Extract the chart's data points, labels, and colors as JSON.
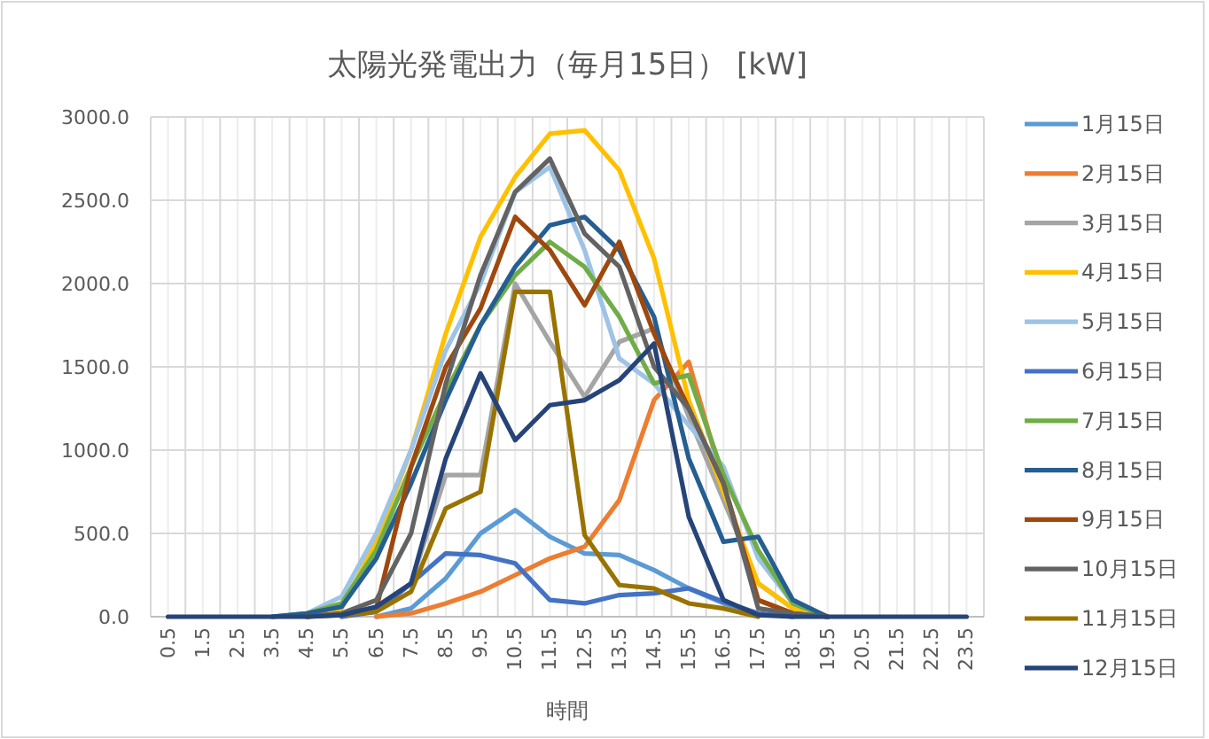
{
  "chart_data": {
    "type": "line",
    "title": "太陽光発電出力（毎月15日） [kW]",
    "xlabel": "時間",
    "categories": [
      "0.5",
      "1.5",
      "2.5",
      "3.5",
      "4.5",
      "5.5",
      "6.5",
      "7.5",
      "8.5",
      "9.5",
      "10.5",
      "11.5",
      "12.5",
      "13.5",
      "14.5",
      "15.5",
      "16.5",
      "17.5",
      "18.5",
      "19.5",
      "20.5",
      "21.5",
      "22.5",
      "23.5"
    ],
    "ylim": [
      0,
      3000
    ],
    "yticks": [
      {
        "value": 0,
        "label": "0.0"
      },
      {
        "value": 500,
        "label": "500.0"
      },
      {
        "value": 1000,
        "label": "1000.0"
      },
      {
        "value": 1500,
        "label": "1500.0"
      },
      {
        "value": 2000,
        "label": "2000.0"
      },
      {
        "value": 2500,
        "label": "2500.0"
      },
      {
        "value": 3000,
        "label": "3000.0"
      }
    ],
    "grid": true,
    "legend": "right",
    "series": [
      {
        "name": "1月15日",
        "color": "#5b9bd5",
        "values": [
          null,
          null,
          null,
          null,
          null,
          null,
          0,
          50,
          230,
          500,
          640,
          480,
          380,
          370,
          280,
          170,
          80,
          20,
          0,
          null,
          null,
          null,
          null,
          null
        ]
      },
      {
        "name": "2月15日",
        "color": "#ed7d31",
        "values": [
          null,
          null,
          null,
          null,
          null,
          null,
          0,
          20,
          80,
          150,
          250,
          350,
          420,
          700,
          1300,
          1530,
          800,
          100,
          20,
          0,
          null,
          null,
          null,
          null
        ]
      },
      {
        "name": "3月15日",
        "color": "#a5a5a5",
        "values": [
          null,
          null,
          null,
          null,
          null,
          0,
          50,
          200,
          850,
          850,
          2000,
          1650,
          1320,
          1650,
          1730,
          1200,
          700,
          200,
          50,
          0,
          null,
          null,
          null,
          null
        ]
      },
      {
        "name": "4月15日",
        "color": "#ffc000",
        "values": [
          null,
          null,
          null,
          null,
          0,
          50,
          450,
          1000,
          1700,
          2280,
          2640,
          2900,
          2920,
          2680,
          2150,
          1300,
          750,
          200,
          50,
          0,
          null,
          null,
          null,
          null
        ]
      },
      {
        "name": "5月15日",
        "color": "#9dc3e6",
        "values": [
          null,
          null,
          null,
          0,
          20,
          120,
          500,
          1000,
          1600,
          2000,
          2550,
          2700,
          2200,
          1550,
          1400,
          1150,
          900,
          350,
          80,
          0,
          null,
          null,
          null,
          null
        ]
      },
      {
        "name": "6月15日",
        "color": "#4472c4",
        "values": [
          null,
          null,
          null,
          null,
          null,
          0,
          30,
          200,
          380,
          370,
          320,
          100,
          80,
          130,
          140,
          170,
          90,
          20,
          0,
          null,
          null,
          null,
          null,
          null
        ]
      },
      {
        "name": "7月15日",
        "color": "#70ad47",
        "values": [
          null,
          null,
          null,
          0,
          20,
          80,
          400,
          900,
          1350,
          1750,
          2050,
          2250,
          2100,
          1800,
          1400,
          1450,
          850,
          400,
          80,
          0,
          null,
          null,
          null,
          null
        ]
      },
      {
        "name": "8月15日",
        "color": "#255e91",
        "values": [
          null,
          null,
          null,
          0,
          20,
          60,
          350,
          800,
          1300,
          1750,
          2100,
          2350,
          2400,
          2200,
          1800,
          950,
          450,
          480,
          100,
          0,
          null,
          null,
          null,
          null
        ]
      },
      {
        "name": "9月15日",
        "color": "#9e480e",
        "values": [
          null,
          null,
          null,
          null,
          0,
          20,
          50,
          900,
          1500,
          1850,
          2400,
          2200,
          1870,
          2250,
          1700,
          1250,
          800,
          100,
          20,
          0,
          null,
          null,
          null,
          null
        ]
      },
      {
        "name": "10月15日",
        "color": "#636363",
        "values": [
          null,
          null,
          null,
          null,
          0,
          20,
          100,
          500,
          1400,
          2050,
          2550,
          2750,
          2300,
          2100,
          1500,
          1250,
          800,
          50,
          20,
          0,
          null,
          null,
          null,
          null
        ]
      },
      {
        "name": "11月15日",
        "color": "#997300",
        "values": [
          null,
          null,
          null,
          null,
          0,
          10,
          30,
          150,
          650,
          750,
          1950,
          1950,
          490,
          190,
          170,
          80,
          50,
          0,
          null,
          null,
          null,
          null,
          null,
          null
        ]
      },
      {
        "name": "12月15日",
        "color": "#264478",
        "values": [
          0,
          0,
          0,
          0,
          0,
          10,
          60,
          200,
          950,
          1460,
          1060,
          1270,
          1300,
          1420,
          1640,
          600,
          100,
          10,
          0,
          0,
          0,
          0,
          0,
          0
        ]
      }
    ]
  }
}
